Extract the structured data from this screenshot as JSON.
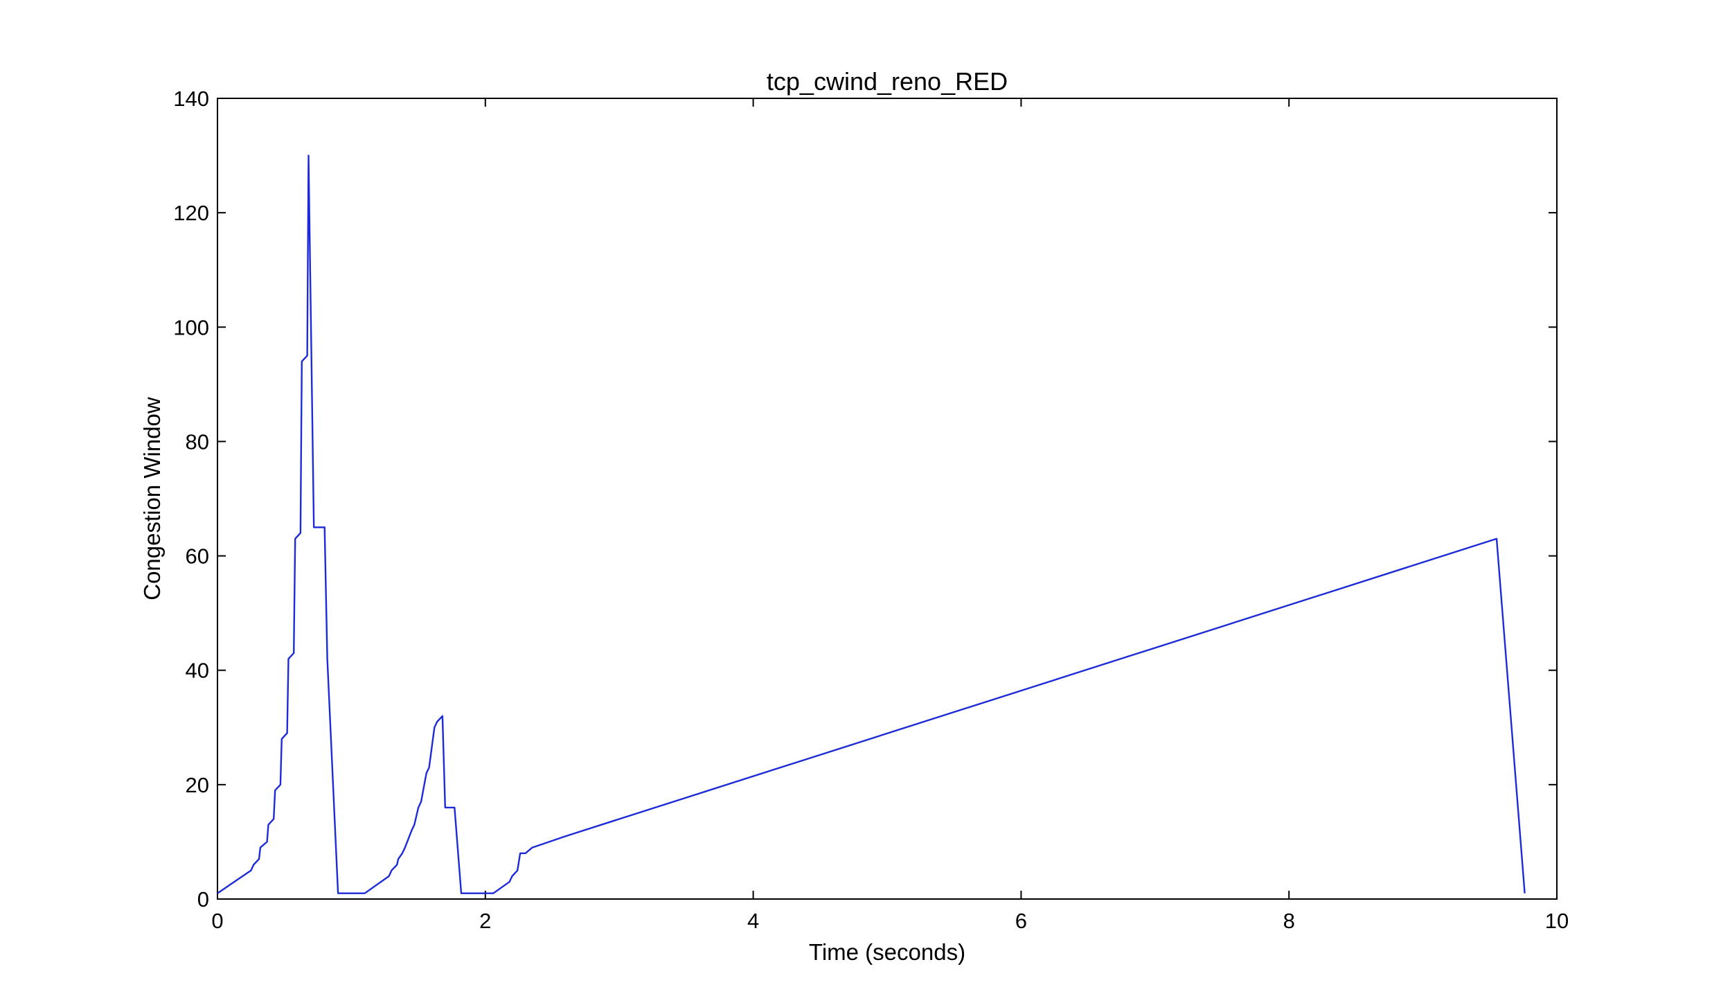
{
  "chart_data": {
    "type": "line",
    "title": "tcp_cwind_reno_RED",
    "xlabel": "Time (seconds)",
    "ylabel": "Congestion Window",
    "xlim": [
      0,
      10
    ],
    "ylim": [
      0,
      140
    ],
    "xticks": [
      0,
      2,
      4,
      6,
      8,
      10
    ],
    "yticks": [
      0,
      20,
      40,
      60,
      80,
      100,
      120,
      140
    ],
    "grid": false,
    "legend": "none",
    "line_color": "#1c2ad8",
    "series": [
      {
        "x": [
          0.0,
          0.25,
          0.27,
          0.31,
          0.32,
          0.37,
          0.38,
          0.42,
          0.43,
          0.47,
          0.48,
          0.52,
          0.53,
          0.57,
          0.58,
          0.62,
          0.63,
          0.67,
          0.68,
          0.72,
          0.73,
          0.78,
          0.8,
          0.82,
          0.9,
          1.1,
          1.28,
          1.3,
          1.34,
          1.35,
          1.38,
          1.4,
          1.45,
          1.47,
          1.5,
          1.52,
          1.56,
          1.58,
          1.62,
          1.64,
          1.68,
          1.7,
          1.75,
          1.77,
          1.82,
          1.86,
          2.06,
          2.18,
          2.2,
          2.24,
          2.26,
          2.3,
          2.35,
          2.6,
          9.55,
          9.76
        ],
        "y": [
          1,
          5,
          6,
          7,
          9,
          10,
          13,
          14,
          19,
          20,
          28,
          29,
          42,
          43,
          63,
          64,
          94,
          95,
          130,
          65,
          65,
          65,
          42,
          1,
          5,
          6,
          7,
          8,
          9,
          12,
          13,
          16,
          17,
          22,
          23,
          30,
          31,
          32,
          16,
          16,
          16,
          1,
          3,
          4,
          5,
          8,
          8,
          9,
          11,
          63,
          1,
          1,
          1,
          1,
          1,
          1
        ],
        "points": [
          [
            0.0,
            1
          ],
          [
            0.25,
            5
          ],
          [
            0.27,
            6
          ],
          [
            0.31,
            7
          ],
          [
            0.32,
            9
          ],
          [
            0.37,
            10
          ],
          [
            0.38,
            13
          ],
          [
            0.42,
            14
          ],
          [
            0.43,
            19
          ],
          [
            0.47,
            20
          ],
          [
            0.48,
            28
          ],
          [
            0.52,
            29
          ],
          [
            0.53,
            42
          ],
          [
            0.57,
            43
          ],
          [
            0.58,
            63
          ],
          [
            0.62,
            64
          ],
          [
            0.63,
            94
          ],
          [
            0.67,
            95
          ],
          [
            0.68,
            130
          ],
          [
            0.72,
            65
          ],
          [
            0.78,
            65
          ],
          [
            0.8,
            65
          ],
          [
            0.82,
            42
          ],
          [
            0.9,
            1
          ],
          [
            1.1,
            1
          ],
          [
            1.28,
            4
          ],
          [
            1.3,
            5
          ],
          [
            1.34,
            6
          ],
          [
            1.35,
            7
          ],
          [
            1.38,
            8
          ],
          [
            1.4,
            9
          ],
          [
            1.45,
            12
          ],
          [
            1.47,
            13
          ],
          [
            1.5,
            16
          ],
          [
            1.52,
            17
          ],
          [
            1.56,
            22
          ],
          [
            1.58,
            23
          ],
          [
            1.62,
            30
          ],
          [
            1.64,
            31
          ],
          [
            1.68,
            32
          ],
          [
            1.7,
            16
          ],
          [
            1.75,
            16
          ],
          [
            1.77,
            16
          ],
          [
            1.82,
            1
          ],
          [
            2.06,
            1
          ],
          [
            2.18,
            3
          ],
          [
            2.2,
            4
          ],
          [
            2.24,
            5
          ],
          [
            2.26,
            8
          ],
          [
            2.3,
            8
          ],
          [
            2.35,
            9
          ],
          [
            2.6,
            11
          ],
          [
            9.55,
            63
          ],
          [
            9.76,
            1
          ]
        ]
      }
    ]
  }
}
